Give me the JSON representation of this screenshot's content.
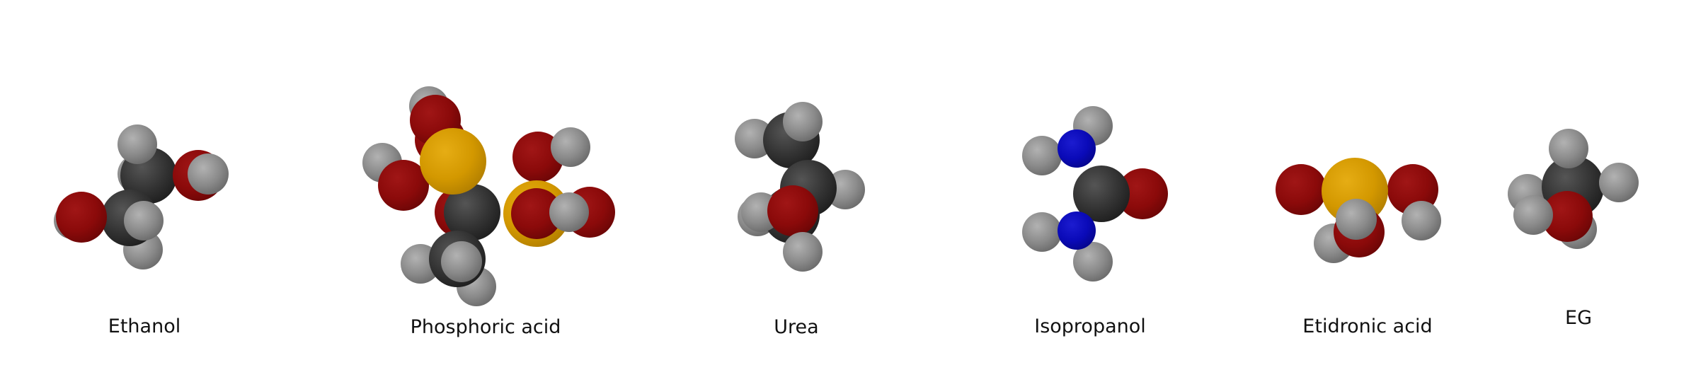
{
  "molecules": [
    {
      "label": "Ethanol"
    },
    {
      "label": "Phosphoric acid"
    },
    {
      "label": "Urea"
    },
    {
      "label": "Isopropanol"
    },
    {
      "label": "Etidronic acid"
    },
    {
      "label": "EG"
    }
  ],
  "colors": {
    "hydrogen": "#8a8a8a",
    "carbon": "#333333",
    "oxygen": "#8b0a0a",
    "nitrogen": "#0a0ab8",
    "phosphorus": "#d39800",
    "background": "#ffffff"
  }
}
